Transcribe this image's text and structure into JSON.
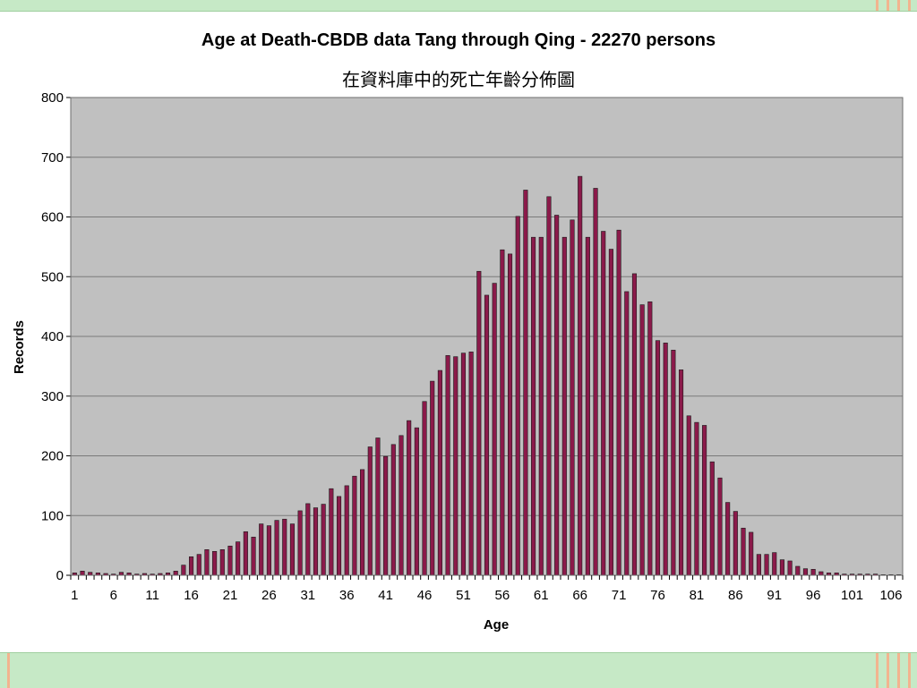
{
  "slide": {
    "band_color": "#c6e9c6",
    "stripe_color": "#f2b48f"
  },
  "chart_data": {
    "type": "bar",
    "title": "Age at Death-CBDB data Tang through Qing - 22270 persons",
    "subtitle": "在資料庫中的死亡年齡分佈圖",
    "xlabel": "Age",
    "ylabel": "Records",
    "ylim": [
      0,
      800
    ],
    "yticks": [
      0,
      100,
      200,
      300,
      400,
      500,
      600,
      700,
      800
    ],
    "xtick_labels": [
      "1",
      "6",
      "11",
      "16",
      "21",
      "26",
      "31",
      "36",
      "41",
      "46",
      "51",
      "56",
      "61",
      "66",
      "71",
      "76",
      "81",
      "86",
      "91",
      "96",
      "101",
      "106"
    ],
    "grid": true,
    "legend": "none",
    "plot_background": "#c0c0c0",
    "bar_color": "#8b1a4a",
    "x_start": 1,
    "values": [
      4,
      7,
      5,
      4,
      3,
      2,
      5,
      4,
      2,
      3,
      2,
      3,
      4,
      7,
      17,
      31,
      35,
      43,
      40,
      43,
      49,
      56,
      73,
      64,
      86,
      83,
      92,
      94,
      86,
      108,
      120,
      113,
      119,
      145,
      132,
      150,
      166,
      177,
      215,
      230,
      199,
      219,
      234,
      259,
      247,
      291,
      325,
      343,
      368,
      366,
      372,
      374,
      509,
      469,
      489,
      545,
      538,
      601,
      645,
      566,
      566,
      634,
      603,
      566,
      595,
      668,
      566,
      648,
      576,
      546,
      578,
      475,
      505,
      453,
      458,
      393,
      389,
      377,
      344,
      267,
      256,
      251,
      190,
      163,
      122,
      107,
      79,
      72,
      35,
      35,
      38,
      26,
      24,
      15,
      11,
      10,
      6,
      4,
      4,
      2,
      2,
      2,
      2,
      2,
      1,
      1,
      1
    ]
  }
}
